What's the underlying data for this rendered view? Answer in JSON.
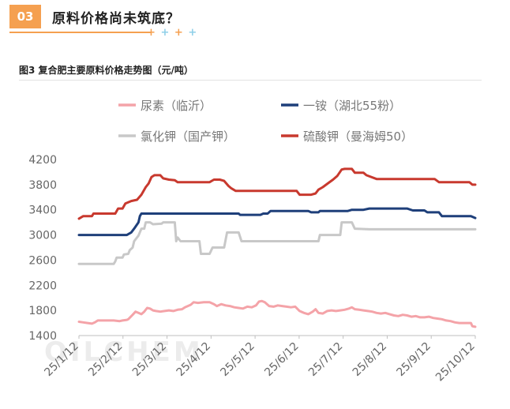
{
  "section": {
    "number": "03",
    "title": "原料价格尚未筑底？",
    "decoration": [
      "+",
      "+",
      "+",
      "+"
    ]
  },
  "figure_title": "图3  复合肥主要原料价格走势图（元/吨）",
  "watermark": "OILCHEM",
  "colors": {
    "accent": "#f5a050",
    "urea": "#f4a3a8",
    "map": "#1e3f7a",
    "kcl": "#c8c8c8",
    "sop": "#c8392e"
  },
  "chart_data": {
    "type": "line",
    "title": "",
    "xlabel": "",
    "ylabel": "",
    "ylim": [
      1400,
      4200
    ],
    "yticks": [
      1400,
      1800,
      2200,
      2600,
      3000,
      3400,
      3800,
      4200
    ],
    "x_tick_labels": [
      "25/1/12",
      "25/2/12",
      "25/3/12",
      "25/4/12",
      "25/5/12",
      "25/6/12",
      "25/7/12",
      "25/8/12",
      "25/9/12",
      "25/10/12"
    ],
    "x_range_days": [
      0,
      273
    ],
    "grid": false,
    "legend": "top",
    "series": [
      {
        "name": "尿素（临沂）",
        "color": "#f4a3a8",
        "points": [
          [
            0,
            1620
          ],
          [
            3,
            1610
          ],
          [
            6,
            1600
          ],
          [
            9,
            1590
          ],
          [
            11,
            1610
          ],
          [
            13,
            1640
          ],
          [
            16,
            1640
          ],
          [
            20,
            1640
          ],
          [
            24,
            1640
          ],
          [
            28,
            1630
          ],
          [
            30,
            1640
          ],
          [
            33,
            1650
          ],
          [
            34,
            1660
          ],
          [
            37,
            1730
          ],
          [
            39,
            1780
          ],
          [
            41,
            1760
          ],
          [
            43,
            1740
          ],
          [
            45,
            1780
          ],
          [
            47,
            1840
          ],
          [
            49,
            1830
          ],
          [
            51,
            1800
          ],
          [
            53,
            1790
          ],
          [
            56,
            1780
          ],
          [
            59,
            1790
          ],
          [
            62,
            1800
          ],
          [
            65,
            1790
          ],
          [
            68,
            1810
          ],
          [
            71,
            1820
          ],
          [
            73,
            1850
          ],
          [
            75,
            1870
          ],
          [
            77,
            1890
          ],
          [
            79,
            1930
          ],
          [
            82,
            1920
          ],
          [
            86,
            1930
          ],
          [
            90,
            1930
          ],
          [
            93,
            1900
          ],
          [
            95,
            1870
          ],
          [
            98,
            1900
          ],
          [
            101,
            1880
          ],
          [
            104,
            1870
          ],
          [
            107,
            1850
          ],
          [
            110,
            1840
          ],
          [
            113,
            1830
          ],
          [
            116,
            1860
          ],
          [
            119,
            1850
          ],
          [
            122,
            1880
          ],
          [
            124,
            1940
          ],
          [
            126,
            1950
          ],
          [
            128,
            1930
          ],
          [
            131,
            1870
          ],
          [
            134,
            1860
          ],
          [
            137,
            1880
          ],
          [
            140,
            1870
          ],
          [
            143,
            1860
          ],
          [
            146,
            1850
          ],
          [
            149,
            1860
          ],
          [
            152,
            1790
          ],
          [
            155,
            1760
          ],
          [
            158,
            1740
          ],
          [
            161,
            1780
          ],
          [
            163,
            1820
          ],
          [
            165,
            1760
          ],
          [
            168,
            1750
          ],
          [
            171,
            1790
          ],
          [
            174,
            1800
          ],
          [
            177,
            1790
          ],
          [
            180,
            1800
          ],
          [
            183,
            1810
          ],
          [
            186,
            1830
          ],
          [
            188,
            1850
          ],
          [
            190,
            1820
          ],
          [
            193,
            1810
          ],
          [
            196,
            1800
          ],
          [
            199,
            1790
          ],
          [
            202,
            1780
          ],
          [
            205,
            1760
          ],
          [
            208,
            1750
          ],
          [
            211,
            1760
          ],
          [
            214,
            1740
          ],
          [
            217,
            1720
          ],
          [
            220,
            1710
          ],
          [
            223,
            1730
          ],
          [
            226,
            1720
          ],
          [
            229,
            1700
          ],
          [
            232,
            1710
          ],
          [
            235,
            1690
          ],
          [
            238,
            1690
          ],
          [
            241,
            1700
          ],
          [
            244,
            1680
          ],
          [
            247,
            1670
          ],
          [
            250,
            1660
          ],
          [
            253,
            1640
          ],
          [
            256,
            1630
          ],
          [
            259,
            1610
          ],
          [
            262,
            1600
          ],
          [
            265,
            1600
          ],
          [
            268,
            1600
          ],
          [
            270,
            1600
          ],
          [
            271,
            1550
          ],
          [
            273,
            1540
          ]
        ]
      },
      {
        "name": "一铵（湖北55粉）",
        "color": "#1e3f7a",
        "points": [
          [
            0,
            3000
          ],
          [
            33,
            3000
          ],
          [
            36,
            3040
          ],
          [
            38,
            3100
          ],
          [
            41,
            3200
          ],
          [
            42,
            3300
          ],
          [
            43,
            3340
          ],
          [
            60,
            3340
          ],
          [
            80,
            3340
          ],
          [
            100,
            3340
          ],
          [
            110,
            3340
          ],
          [
            111,
            3320
          ],
          [
            125,
            3320
          ],
          [
            127,
            3340
          ],
          [
            130,
            3340
          ],
          [
            132,
            3380
          ],
          [
            150,
            3380
          ],
          [
            158,
            3380
          ],
          [
            160,
            3360
          ],
          [
            165,
            3360
          ],
          [
            166,
            3380
          ],
          [
            180,
            3380
          ],
          [
            185,
            3380
          ],
          [
            188,
            3400
          ],
          [
            196,
            3400
          ],
          [
            200,
            3420
          ],
          [
            210,
            3420
          ],
          [
            226,
            3420
          ],
          [
            230,
            3390
          ],
          [
            238,
            3390
          ],
          [
            240,
            3360
          ],
          [
            248,
            3360
          ],
          [
            250,
            3300
          ],
          [
            260,
            3300
          ],
          [
            270,
            3300
          ],
          [
            273,
            3270
          ]
        ]
      },
      {
        "name": "氯化钾（国产钾）",
        "color": "#c8c8c8",
        "points": [
          [
            0,
            2540
          ],
          [
            24,
            2540
          ],
          [
            25,
            2580
          ],
          [
            26,
            2640
          ],
          [
            30,
            2640
          ],
          [
            31,
            2690
          ],
          [
            34,
            2700
          ],
          [
            35,
            2760
          ],
          [
            37,
            2800
          ],
          [
            38,
            2900
          ],
          [
            41,
            2990
          ],
          [
            43,
            3100
          ],
          [
            45,
            3100
          ],
          [
            46,
            3200
          ],
          [
            49,
            3200
          ],
          [
            51,
            3170
          ],
          [
            57,
            3180
          ],
          [
            58,
            3200
          ],
          [
            64,
            3200
          ],
          [
            66,
            3200
          ],
          [
            67,
            2900
          ],
          [
            68,
            2960
          ],
          [
            70,
            2900
          ],
          [
            83,
            2900
          ],
          [
            84,
            2700
          ],
          [
            90,
            2700
          ],
          [
            92,
            2800
          ],
          [
            100,
            2800
          ],
          [
            102,
            3040
          ],
          [
            110,
            3040
          ],
          [
            112,
            2900
          ],
          [
            150,
            2900
          ],
          [
            165,
            2900
          ],
          [
            166,
            3000
          ],
          [
            180,
            3000
          ],
          [
            181,
            3200
          ],
          [
            188,
            3200
          ],
          [
            190,
            3100
          ],
          [
            200,
            3090
          ],
          [
            273,
            3090
          ]
        ]
      },
      {
        "name": "硫酸钾（曼海姆50）",
        "color": "#c8392e",
        "points": [
          [
            0,
            3260
          ],
          [
            3,
            3300
          ],
          [
            9,
            3300
          ],
          [
            10,
            3340
          ],
          [
            25,
            3340
          ],
          [
            27,
            3420
          ],
          [
            30,
            3420
          ],
          [
            32,
            3500
          ],
          [
            36,
            3540
          ],
          [
            40,
            3560
          ],
          [
            43,
            3640
          ],
          [
            46,
            3760
          ],
          [
            48,
            3820
          ],
          [
            50,
            3920
          ],
          [
            52,
            3950
          ],
          [
            56,
            3950
          ],
          [
            58,
            3900
          ],
          [
            62,
            3880
          ],
          [
            66,
            3870
          ],
          [
            68,
            3840
          ],
          [
            74,
            3840
          ],
          [
            90,
            3840
          ],
          [
            93,
            3880
          ],
          [
            97,
            3880
          ],
          [
            100,
            3860
          ],
          [
            103,
            3780
          ],
          [
            105,
            3740
          ],
          [
            108,
            3700
          ],
          [
            120,
            3700
          ],
          [
            150,
            3700
          ],
          [
            152,
            3640
          ],
          [
            160,
            3640
          ],
          [
            163,
            3660
          ],
          [
            165,
            3720
          ],
          [
            168,
            3760
          ],
          [
            172,
            3830
          ],
          [
            175,
            3880
          ],
          [
            178,
            3940
          ],
          [
            181,
            4040
          ],
          [
            183,
            4050
          ],
          [
            188,
            4050
          ],
          [
            190,
            3990
          ],
          [
            196,
            3990
          ],
          [
            198,
            3950
          ],
          [
            205,
            3890
          ],
          [
            225,
            3890
          ],
          [
            245,
            3890
          ],
          [
            248,
            3840
          ],
          [
            260,
            3840
          ],
          [
            269,
            3840
          ],
          [
            271,
            3800
          ],
          [
            273,
            3800
          ]
        ]
      }
    ]
  }
}
